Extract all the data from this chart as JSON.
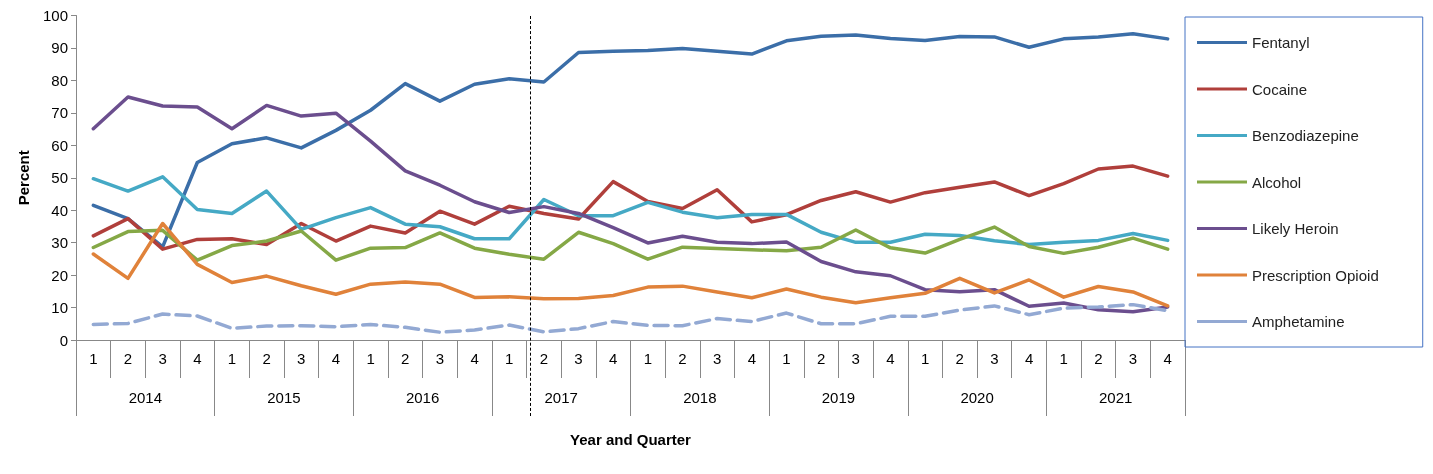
{
  "chart_data": {
    "type": "line",
    "xlabel": "Year and Quarter",
    "ylabel": "Percent",
    "categories": [
      "1",
      "2",
      "3",
      "4",
      "1",
      "2",
      "3",
      "4",
      "1",
      "2",
      "3",
      "4",
      "1",
      "2",
      "3",
      "4",
      "1",
      "2",
      "3",
      "4",
      "1",
      "2",
      "3",
      "4",
      "1",
      "2",
      "3",
      "4",
      "1",
      "2",
      "3",
      "4"
    ],
    "ylim": [
      0,
      100
    ],
    "yticks": [
      0,
      10,
      20,
      30,
      40,
      50,
      60,
      70,
      80,
      90,
      100
    ],
    "grid": false,
    "legend": "right",
    "marker": "none",
    "annotations": [
      "2014",
      "2015",
      "2016",
      "2017",
      "2018",
      "2019",
      "2020",
      "2021"
    ],
    "series": [
      {
        "name": "Fentanyl",
        "color": "#3b6ea8",
        "line_style": "solid",
        "values": [
          41.5,
          37.4,
          28.7,
          54.7,
          60.5,
          62.3,
          59.2,
          64.6,
          70.8,
          79,
          73.6,
          78.8,
          80.5,
          79.5,
          88.6,
          89,
          89.2,
          89.8,
          89,
          88.1,
          92.2,
          93.6,
          94,
          92.9,
          92.3,
          93.5,
          93.4,
          90.2,
          92.8,
          93.4,
          94.4,
          92.8
        ]
      },
      {
        "name": "Cocaine",
        "color": "#b03f3b",
        "line_style": "solid",
        "values": [
          32.1,
          37.4,
          28,
          31,
          31.2,
          29.4,
          35.9,
          30.5,
          35.1,
          33,
          39.7,
          35.7,
          41.2,
          39,
          37.3,
          48.8,
          42.7,
          40.5,
          46.3,
          36.4,
          38.6,
          43,
          45.7,
          42.5,
          45.4,
          47.1,
          48.7,
          44.5,
          48.2,
          52.7,
          53.6,
          50.5
        ]
      },
      {
        "name": "Benzodiazepine",
        "color": "#45a9c5",
        "line_style": "solid",
        "values": [
          49.7,
          45.9,
          50.3,
          40.2,
          39,
          45.9,
          34.1,
          37.7,
          40.8,
          35.7,
          34.9,
          31.2,
          31.2,
          43.3,
          38.3,
          38.3,
          42.4,
          39.4,
          37.7,
          38.7,
          38.7,
          33.2,
          30.1,
          30.1,
          32.6,
          32.2,
          30.6,
          29.4,
          30.1,
          30.7,
          32.8,
          30.7
        ]
      },
      {
        "name": "Alcohol",
        "color": "#85a846",
        "line_style": "solid",
        "values": [
          28.5,
          33.4,
          33.8,
          24.6,
          29.1,
          30.5,
          33.6,
          24.6,
          28.3,
          28.5,
          33,
          28.3,
          26.4,
          24.9,
          33.2,
          29.7,
          24.9,
          28.6,
          28.2,
          27.8,
          27.5,
          28.6,
          33.9,
          28.4,
          26.8,
          31,
          34.8,
          28.8,
          26.7,
          28.6,
          31.4,
          28
        ]
      },
      {
        "name": "Likely Heroin",
        "color": "#6b4e8e",
        "line_style": "solid",
        "values": [
          65.1,
          74.9,
          72.1,
          71.8,
          65.1,
          72.3,
          69,
          69.9,
          61.3,
          52.1,
          47.7,
          42.6,
          39.3,
          41.1,
          39,
          34.6,
          29.9,
          32,
          30.1,
          29.7,
          30.2,
          24.2,
          21,
          19.8,
          15.5,
          14.9,
          15.5,
          10.4,
          11.4,
          9.3,
          8.7,
          10.2
        ]
      },
      {
        "name": "Prescription Opioid",
        "color": "#e0823a",
        "line_style": "solid",
        "values": [
          26.5,
          19,
          35.9,
          23.3,
          17.7,
          19.7,
          16.7,
          14.1,
          17.2,
          17.9,
          17.2,
          13.1,
          13.3,
          12.7,
          12.8,
          13.7,
          16.3,
          16.6,
          14.8,
          13,
          15.7,
          13.2,
          11.5,
          13,
          14.4,
          19,
          14.5,
          18.5,
          13.2,
          16.5,
          14.8,
          10.5
        ]
      },
      {
        "name": "Amphetamine",
        "color": "#93a9d3",
        "line_style": "dashed",
        "values": [
          4.8,
          5.1,
          8,
          7.4,
          3.6,
          4.3,
          4.4,
          4.1,
          4.8,
          3.9,
          2.4,
          3.1,
          4.6,
          2.5,
          3.5,
          5.7,
          4.5,
          4.4,
          6.6,
          5.7,
          8.3,
          5,
          5,
          7.3,
          7.3,
          9.2,
          10.5,
          7.8,
          9.8,
          10.2,
          10.9,
          9
        ]
      }
    ]
  }
}
